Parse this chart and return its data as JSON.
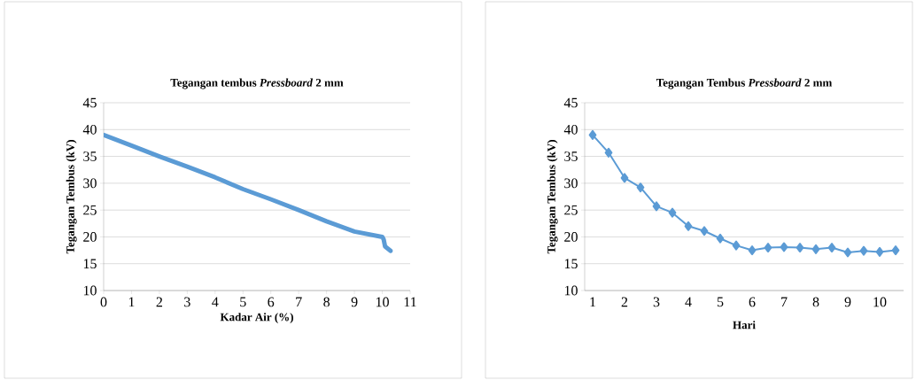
{
  "chart_data": [
    {
      "type": "line",
      "title": "Tegangan tembus *Pressboard* 2 mm",
      "xlabel": "Kadar Air (%)",
      "ylabel": "Tegangan Tembus (kV)",
      "series": [
        {
          "color": "#5b9bd5",
          "x": [
            0,
            1,
            2,
            3,
            4,
            5,
            6,
            7,
            8,
            9,
            10,
            10.05,
            10.1,
            10.2,
            10.3
          ],
          "values": [
            39,
            37,
            35,
            33.1,
            31.1,
            28.9,
            27,
            25,
            22.9,
            21,
            20,
            19.5,
            18.2,
            17.8,
            17.4
          ]
        }
      ],
      "xlim": [
        0,
        11
      ],
      "xticks": [
        0,
        1,
        2,
        3,
        4,
        5,
        6,
        7,
        8,
        9,
        10,
        11
      ],
      "ylim": [
        10,
        45
      ],
      "yticks": [
        10,
        15,
        20,
        25,
        30,
        35,
        40,
        45
      ],
      "grid": "y",
      "marker": "none",
      "line_style": "solid"
    },
    {
      "type": "line",
      "title": "Tegangan Tembus *Pressboard* 2 mm",
      "xlabel": "Hari",
      "ylabel": "Tegangan Tembus (kV)",
      "categories": [
        "1",
        null,
        "2",
        null,
        "3",
        null,
        "4",
        null,
        "5",
        null,
        "6",
        null,
        "7",
        null,
        "8",
        null,
        "9",
        null,
        "10",
        null
      ],
      "series": [
        {
          "color": "#5b9bd5",
          "values": [
            39,
            35.7,
            31,
            29.2,
            25.7,
            24.5,
            22,
            21.1,
            19.7,
            18.4,
            17.5,
            18,
            18.1,
            18,
            17.7,
            18,
            17.1,
            17.4,
            17.2,
            17.5
          ]
        }
      ],
      "ylim": [
        10,
        45
      ],
      "yticks": [
        10,
        15,
        20,
        25,
        30,
        35,
        40,
        45
      ],
      "grid": "y",
      "marker": "diamond",
      "line_style": "solid"
    }
  ]
}
